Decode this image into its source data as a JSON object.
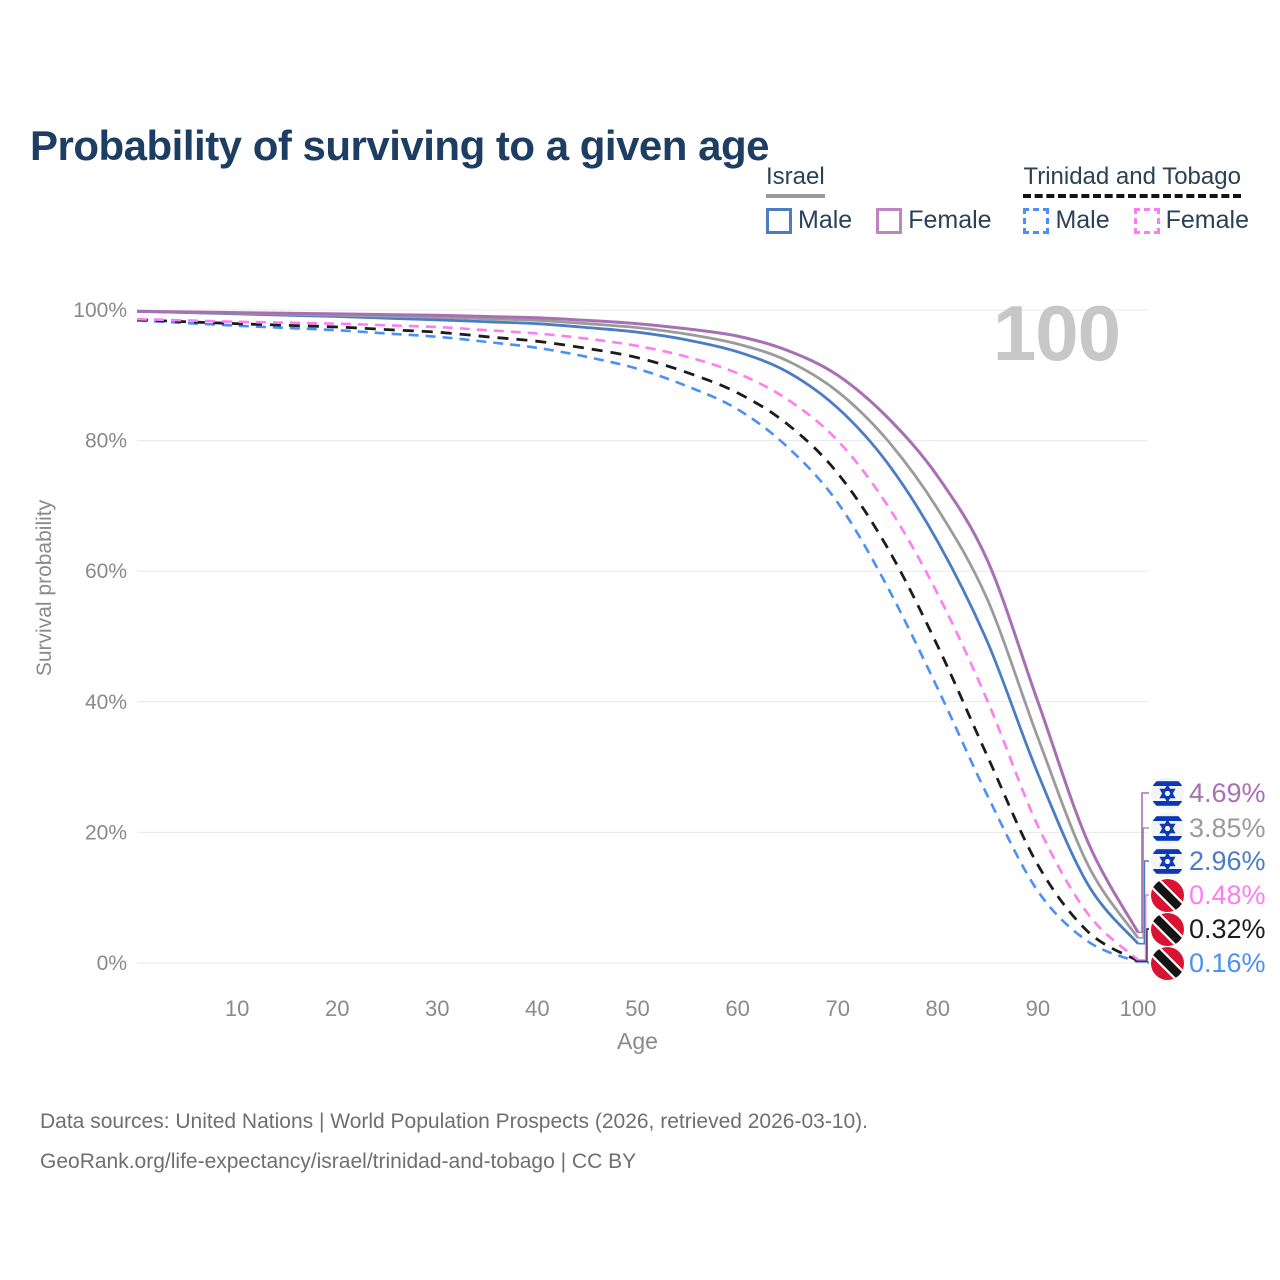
{
  "title": "Probability of surviving to a given age",
  "annotation": "100",
  "colors": {
    "title": "#1d3d63",
    "legend_text": "#2a4158",
    "axis_text": "#8a8a8a",
    "grid": "#e8e8e8",
    "annotation": "#c7c7c7",
    "footer": "#6f6f6f",
    "israel_male": "#4a7dc3",
    "israel_female": "#a96fb4",
    "israel_both": "#9b9b9b",
    "tt_male": "#4a90f5",
    "tt_female": "#ff7df2",
    "tt_both": "#1c1c1c"
  },
  "legend": {
    "groups": [
      {
        "name": "Israel",
        "underline_color": "#9a9a9a",
        "underline_style": "solid",
        "items": [
          {
            "label": "Male",
            "color": "#4a7dc3",
            "dashed": false
          },
          {
            "label": "Female",
            "color": "#c084c4",
            "dashed": false
          }
        ]
      },
      {
        "name": "Trinidad and Tobago",
        "underline_color": "#141414",
        "underline_style": "dashed",
        "items": [
          {
            "label": "Male",
            "color": "#4a90f5",
            "dashed": true
          },
          {
            "label": "Female",
            "color": "#ff7df2",
            "dashed": true
          }
        ]
      }
    ]
  },
  "y_axis": {
    "label": "Survival probability",
    "ticks": [
      "0%",
      "20%",
      "40%",
      "60%",
      "80%",
      "100%"
    ],
    "tick_values": [
      0,
      20,
      40,
      60,
      80,
      100
    ]
  },
  "x_axis": {
    "label": "Age",
    "tick_values": [
      10,
      20,
      30,
      40,
      50,
      60,
      70,
      80,
      90,
      100
    ]
  },
  "chart_data": {
    "type": "line",
    "title": "Probability of surviving to a given age",
    "xlabel": "Age",
    "ylabel": "Survival probability",
    "xlim": [
      0,
      100
    ],
    "ylim": [
      0,
      100
    ],
    "grid": true,
    "legend_position": "top-right",
    "x": [
      0,
      5,
      10,
      15,
      20,
      25,
      30,
      35,
      40,
      45,
      50,
      55,
      60,
      65,
      70,
      75,
      80,
      85,
      90,
      95,
      100
    ],
    "series": [
      {
        "name": "Trinidad and Tobago Male",
        "country": "Trinidad and Tobago",
        "sex": "Male",
        "color": "#4a90f5",
        "dash": "10 7",
        "width": 2.6,
        "end_label": "0.16%",
        "end_label_row": 5,
        "values": [
          98.4,
          98.0,
          97.6,
          97.25,
          96.9,
          96.4,
          95.9,
          95.1,
          94.2,
          92.8,
          91.0,
          88.3,
          84.8,
          79.0,
          70.5,
          57.5,
          42.0,
          25.5,
          11.0,
          3.3,
          0.16
        ]
      },
      {
        "name": "Trinidad and Tobago Both sexes",
        "country": "Trinidad and Tobago",
        "sex": "Both sexes",
        "color": "#1c1c1c",
        "dash": "11 8",
        "width": 2.8,
        "end_label": "0.32%",
        "end_label_row": 4,
        "values": [
          98.5,
          98.2,
          97.9,
          97.65,
          97.4,
          97.0,
          96.6,
          95.9,
          95.2,
          94.1,
          92.7,
          90.4,
          87.3,
          82.5,
          75.0,
          63.5,
          48.5,
          31.5,
          15.0,
          4.8,
          0.32
        ]
      },
      {
        "name": "Trinidad and Tobago Female",
        "country": "Trinidad and Tobago",
        "sex": "Female",
        "color": "#ff7df2",
        "dash": "10 7",
        "width": 2.6,
        "end_label": "0.48%",
        "end_label_row": 3,
        "values": [
          98.6,
          98.4,
          98.2,
          98.05,
          97.9,
          97.65,
          97.4,
          96.9,
          96.4,
          95.6,
          94.5,
          92.8,
          90.3,
          86.3,
          80.0,
          70.0,
          56.5,
          40.0,
          21.0,
          7.5,
          0.48
        ]
      },
      {
        "name": "Israel Male",
        "country": "Israel",
        "sex": "Male",
        "color": "#4a7dc3",
        "dash": null,
        "width": 2.8,
        "end_label": "2.96%",
        "end_label_row": 2,
        "values": [
          99.8,
          99.6,
          99.4,
          99.2,
          99.0,
          98.75,
          98.5,
          98.2,
          97.9,
          97.3,
          96.6,
          95.4,
          93.6,
          90.5,
          85.0,
          76.5,
          64.5,
          49.0,
          29.0,
          12.0,
          2.96
        ]
      },
      {
        "name": "Israel Both sexes",
        "country": "Israel",
        "sex": "Both sexes",
        "color": "#9b9b9b",
        "dash": null,
        "width": 2.8,
        "end_label": "3.85%",
        "end_label_row": 1,
        "values": [
          99.8,
          99.65,
          99.5,
          99.35,
          99.2,
          99.05,
          98.9,
          98.65,
          98.4,
          97.9,
          97.3,
          96.3,
          94.8,
          92.2,
          87.5,
          80.0,
          69.5,
          55.5,
          34.5,
          15.0,
          3.85
        ]
      },
      {
        "name": "Israel Female",
        "country": "Israel",
        "sex": "Female",
        "color": "#a96fb4",
        "dash": null,
        "width": 3.0,
        "end_label": "4.69%",
        "end_label_row": 0,
        "values": [
          99.8,
          99.7,
          99.6,
          99.5,
          99.4,
          99.3,
          99.2,
          99.0,
          98.8,
          98.4,
          97.9,
          97.1,
          96.0,
          93.8,
          90.0,
          83.5,
          74.5,
          61.5,
          40.0,
          18.5,
          4.69
        ]
      }
    ]
  },
  "end_labels": [
    {
      "text": "4.69%",
      "color": "#a96fb4",
      "flag": "israel"
    },
    {
      "text": "3.85%",
      "color": "#9b9b9b",
      "flag": "israel"
    },
    {
      "text": "2.96%",
      "color": "#4a7dc3",
      "flag": "israel"
    },
    {
      "text": "0.48%",
      "color": "#ff7df2",
      "flag": "trinidad"
    },
    {
      "text": "0.32%",
      "color": "#1c1c1c",
      "flag": "trinidad"
    },
    {
      "text": "0.16%",
      "color": "#4a90f5",
      "flag": "trinidad"
    }
  ],
  "footer": {
    "line1": "Data sources: United Nations | World Population Prospects (2026, retrieved 2026-03-10).",
    "line2": "GeoRank.org/life-expectancy/israel/trinidad-and-tobago | CC BY"
  }
}
